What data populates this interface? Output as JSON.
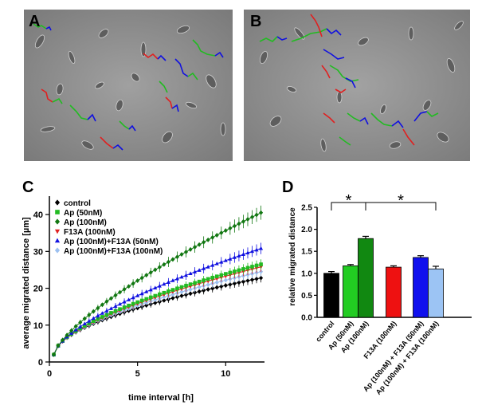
{
  "panels": {
    "a": {
      "letter": "A"
    },
    "b": {
      "letter": "B"
    },
    "c": {
      "letter": "C"
    },
    "d": {
      "letter": "D"
    }
  },
  "colors": {
    "control": "#000000",
    "ap50": "#22bb22",
    "ap100": "#117711",
    "f13a": "#e02020",
    "ap_f13a50": "#1010e0",
    "ap_f13a100": "#9cc0f0",
    "micro_bg": "#8a8a8a"
  },
  "chart_data": [
    {
      "type": "line",
      "panel": "C",
      "xlabel": "time interval [h]",
      "ylabel": "average migrated distance [µm]",
      "xlim": [
        0,
        12.2
      ],
      "ylim": [
        0,
        45
      ],
      "xticks": [
        0,
        5,
        10
      ],
      "yticks": [
        0,
        10,
        20,
        30,
        40
      ],
      "legend_position": "top-left",
      "series": [
        {
          "name": "control",
          "color": "#000000",
          "marker": "diamond",
          "final": 22.8,
          "exp": 0.55
        },
        {
          "name": "Ap (50nM)",
          "color": "#22bb22",
          "marker": "square",
          "final": 26.5,
          "exp": 0.6
        },
        {
          "name": "Ap (100nM)",
          "color": "#117711",
          "marker": "diamond",
          "final": 40.5,
          "exp": 0.72
        },
        {
          "name": "F13A (100nM)",
          "color": "#e02020",
          "marker": "triangle-down",
          "final": 25.8,
          "exp": 0.6
        },
        {
          "name": "Ap (100nM)+F13A (50nM)",
          "color": "#1010e0",
          "marker": "triangle-up",
          "final": 30.8,
          "exp": 0.65
        },
        {
          "name": "Ap (100nM)+F13A (100nM)",
          "color": "#9cc0f0",
          "marker": "diamond",
          "final": 24.5,
          "exp": 0.58
        }
      ]
    },
    {
      "type": "bar",
      "panel": "D",
      "ylabel": "relative migrated distance",
      "ylim": [
        0,
        2.5
      ],
      "yticks": [
        "0.0",
        "0.5",
        "1.0",
        "1.5",
        "2.0",
        "2.5"
      ],
      "categories": [
        "control",
        "Ap (50nM)",
        "Ap (100nM)",
        "F13A (100nM)",
        "Ap (100nM) + F13A (50nM)",
        "Ap (100nM) + F13A (100nM)"
      ],
      "values": [
        1.0,
        1.17,
        1.79,
        1.14,
        1.36,
        1.1
      ],
      "errors": [
        0.04,
        0.03,
        0.05,
        0.03,
        0.04,
        0.06
      ],
      "colors": [
        "#000000",
        "#22cc22",
        "#118811",
        "#ee1111",
        "#1010ee",
        "#9cc4f4"
      ],
      "significance": [
        {
          "label": "*",
          "from": 0,
          "to": 2
        },
        {
          "label": "*",
          "from": 2,
          "to": 5
        }
      ]
    }
  ]
}
